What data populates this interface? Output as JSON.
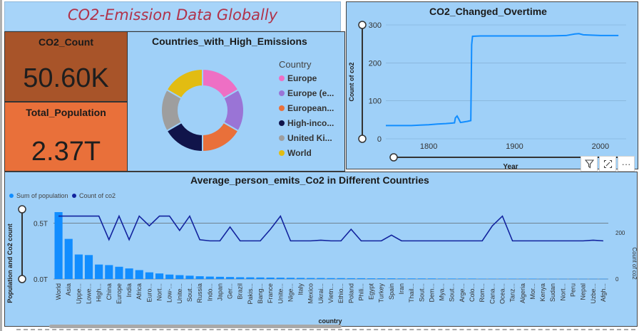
{
  "title": "CO2-Emission Data Globally",
  "kpis": [
    {
      "label": "CO2_Count",
      "value": "50.60K"
    },
    {
      "label": "Total_Population",
      "value": "2.37T"
    }
  ],
  "donut": {
    "title": "Countries_with_High_Emissions",
    "legend_title": "Country",
    "items": [
      {
        "label": "Europe",
        "color": "#ee6fc4",
        "value": 1
      },
      {
        "label": "Europe (e...",
        "color": "#9a74d6",
        "value": 1
      },
      {
        "label": "European...",
        "color": "#e9703a",
        "value": 1
      },
      {
        "label": "High-inco...",
        "color": "#10144a",
        "value": 1
      },
      {
        "label": "United Ki...",
        "color": "#9e9e9e",
        "value": 1
      },
      {
        "label": "World",
        "color": "#e2bc12",
        "value": 1
      }
    ]
  },
  "timeseries": {
    "title": "CO2_Changed_Overtime",
    "ylabel": "Count of co2",
    "xlabel": "Year"
  },
  "bottom": {
    "title": "Average_person_emits_Co2 in Different Countries",
    "legend": [
      {
        "label": "Sum of population",
        "color": "#118dff"
      },
      {
        "label": "Count of co2",
        "color": "#12239e"
      }
    ],
    "ylabel_left": "Population and Co2 count",
    "ylabel_right": "Count of co2",
    "xlabel": "country"
  },
  "toolbar": {
    "filter_icon": "filter-icon",
    "focus_icon": "focus-mode-icon",
    "more_icon": "more-options-icon",
    "more_glyph": "···"
  },
  "chart_data": [
    {
      "type": "line",
      "title": "CO2_Changed_Overtime",
      "xlabel": "Year",
      "ylabel": "Count of co2",
      "xlim": [
        1750,
        2030
      ],
      "ylim": [
        0,
        300
      ],
      "xticks": [
        1800,
        1900,
        2000
      ],
      "yticks": [
        0,
        100,
        200,
        300
      ],
      "grid": true,
      "series": [
        {
          "color": "#118dff",
          "x": [
            1750,
            1760,
            1770,
            1780,
            1790,
            1800,
            1810,
            1820,
            1830,
            1831,
            1833,
            1835,
            1837,
            1840,
            1845,
            1849,
            1850,
            1851,
            1860,
            1880,
            1900,
            1920,
            1940,
            1960,
            1970,
            1975,
            1980,
            1990,
            2000,
            2010,
            2021
          ],
          "y": [
            35,
            35,
            35,
            35,
            36,
            37,
            39,
            40,
            42,
            55,
            60,
            52,
            43,
            44,
            46,
            48,
            248,
            270,
            271,
            271,
            271,
            271,
            271,
            272,
            276,
            277,
            274,
            273,
            272,
            272,
            272
          ]
        }
      ]
    },
    {
      "type": "bar",
      "title": "Average_person_emits_Co2 in Different Countries",
      "xlabel": "country",
      "ylabel": "Population and Co2 count",
      "y2label": "Count of co2",
      "yticks_left": [
        "0.0T",
        "0.5T"
      ],
      "yticks_right": [
        "0",
        "200"
      ],
      "categories": [
        "World",
        "Asia",
        "Uppe...",
        "Lowe...",
        "High...",
        "China",
        "Europe",
        "India",
        "Africa",
        "Euro...",
        "Nort...",
        "Low-...",
        "Unite...",
        "Sout...",
        "Russia",
        "Indo...",
        "Japan",
        "Ger...",
        "Brazil",
        "Pakis...",
        "Bang...",
        "France",
        "Unite...",
        "Nige...",
        "Italy",
        "Mexico",
        "Ukrai...",
        "Vietn...",
        "Ethio...",
        "Poland",
        "Phili...",
        "Egypt",
        "Turkey",
        "Spain",
        "Iran",
        "Thail...",
        "Sout...",
        "Dem...",
        "Mya...",
        "Sout...",
        "Arge...",
        "Colo...",
        "Rom...",
        "Cana...",
        "Ocea...",
        "Tanz...",
        "Algeria",
        "Mor...",
        "Kenya",
        "Sudan",
        "Nort...",
        "Peru",
        "Nepal",
        "Uzbe...",
        "Afgh..."
      ],
      "series": [
        {
          "name": "Sum of population",
          "axis": "left",
          "color": "#118dff",
          "values": [
            0.6,
            0.36,
            0.22,
            0.215,
            0.13,
            0.125,
            0.11,
            0.095,
            0.08,
            0.06,
            0.05,
            0.04,
            0.035,
            0.03,
            0.025,
            0.022,
            0.02,
            0.018,
            0.016,
            0.015,
            0.014,
            0.013,
            0.012,
            0.011,
            0.01,
            0.009,
            0.009,
            0.008,
            0.008,
            0.007,
            0.007,
            0.006,
            0.006,
            0.006,
            0.005,
            0.005,
            0.005,
            0.005,
            0.004,
            0.004,
            0.004,
            0.004,
            0.003,
            0.003,
            0.003,
            0.003,
            0.003,
            0.003,
            0.002,
            0.002,
            0.002,
            0.002,
            0.002,
            0.002,
            0.002
          ]
        },
        {
          "name": "Count of co2",
          "axis": "right",
          "color": "#12239e",
          "values": [
            272,
            272,
            272,
            272,
            272,
            170,
            272,
            170,
            272,
            230,
            272,
            272,
            210,
            272,
            170,
            165,
            165,
            225,
            165,
            165,
            165,
            215,
            272,
            165,
            165,
            165,
            168,
            165,
            165,
            215,
            165,
            165,
            165,
            190,
            165,
            165,
            165,
            165,
            165,
            165,
            165,
            165,
            165,
            230,
            272,
            165,
            165,
            165,
            165,
            165,
            165,
            165,
            165,
            168,
            165
          ]
        }
      ]
    }
  ]
}
